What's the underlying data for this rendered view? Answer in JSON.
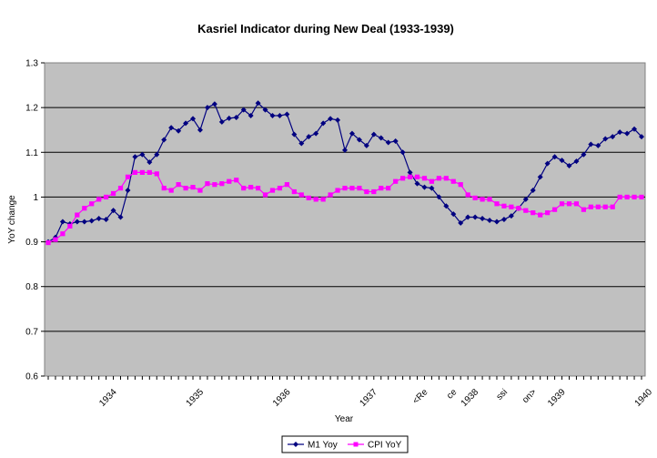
{
  "chart_data": {
    "type": "line",
    "title": "Kasriel Indicator during New Deal (1933-1939)",
    "xlabel": "Year",
    "ylabel": "YoY change",
    "ylim": [
      0.6,
      1.3
    ],
    "yticks": [
      "0.6",
      "0.7",
      "0.8",
      "0.9",
      "1",
      "1.1",
      "1.2",
      "1.3"
    ],
    "xtick_labels": [
      "1934",
      "1935",
      "1936",
      "1937",
      "<Re",
      "ce",
      "1938",
      "ssi",
      "on>",
      "1939",
      "1940"
    ],
    "xtick_index": [
      9,
      21,
      33,
      45,
      52,
      56,
      59,
      63,
      67,
      71,
      83
    ],
    "grid": true,
    "legend_position": "bottom-center",
    "series": [
      {
        "name": "M1 Yoy",
        "color": "#000080",
        "marker": "diamond",
        "values": [
          0.9,
          0.91,
          0.945,
          0.94,
          0.945,
          0.945,
          0.947,
          0.952,
          0.95,
          0.97,
          0.955,
          1.015,
          1.09,
          1.095,
          1.078,
          1.095,
          1.128,
          1.155,
          1.148,
          1.165,
          1.175,
          1.15,
          1.2,
          1.208,
          1.168,
          1.176,
          1.178,
          1.195,
          1.182,
          1.21,
          1.195,
          1.182,
          1.182,
          1.185,
          1.14,
          1.12,
          1.135,
          1.142,
          1.165,
          1.175,
          1.172,
          1.105,
          1.142,
          1.128,
          1.115,
          1.14,
          1.132,
          1.122,
          1.125,
          1.1,
          1.055,
          1.03,
          1.022,
          1.02,
          1.0,
          0.98,
          0.962,
          0.942,
          0.955,
          0.955,
          0.952,
          0.948,
          0.945,
          0.95,
          0.958,
          0.975,
          0.995,
          1.015,
          1.045,
          1.075,
          1.09,
          1.082,
          1.07,
          1.08,
          1.095,
          1.118,
          1.115,
          1.13,
          1.135,
          1.145,
          1.142,
          1.152,
          1.135
        ]
      },
      {
        "name": "CPI YoY",
        "color": "#ff00ff",
        "marker": "square",
        "values": [
          0.898,
          0.905,
          0.918,
          0.935,
          0.96,
          0.975,
          0.985,
          0.995,
          1.0,
          1.008,
          1.02,
          1.045,
          1.055,
          1.055,
          1.055,
          1.052,
          1.02,
          1.015,
          1.028,
          1.02,
          1.022,
          1.015,
          1.03,
          1.028,
          1.03,
          1.035,
          1.038,
          1.02,
          1.022,
          1.02,
          1.005,
          1.015,
          1.02,
          1.028,
          1.012,
          1.005,
          0.998,
          0.995,
          0.995,
          1.005,
          1.015,
          1.02,
          1.02,
          1.02,
          1.012,
          1.012,
          1.02,
          1.02,
          1.035,
          1.042,
          1.045,
          1.045,
          1.042,
          1.035,
          1.042,
          1.042,
          1.035,
          1.028,
          1.005,
          0.998,
          0.995,
          0.995,
          0.985,
          0.98,
          0.978,
          0.975,
          0.97,
          0.965,
          0.96,
          0.965,
          0.972,
          0.985,
          0.985,
          0.985,
          0.972,
          0.978,
          0.978,
          0.978,
          0.978,
          1.0,
          1.0,
          1.0,
          1.0
        ]
      }
    ]
  }
}
